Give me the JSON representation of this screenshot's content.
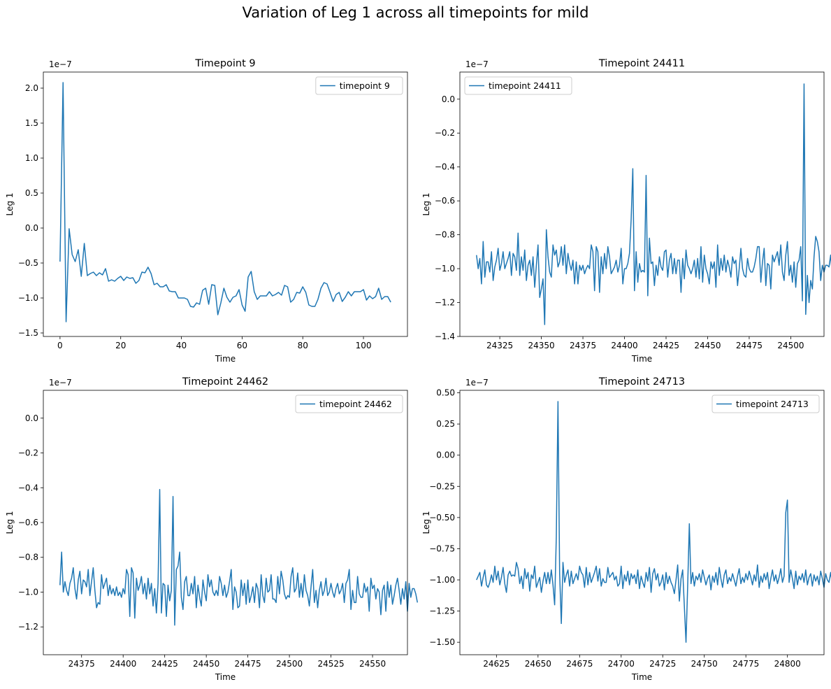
{
  "figure": {
    "title": "Variation of Leg 1 across all timepoints for mild"
  },
  "chart_data": [
    {
      "type": "line",
      "title": "Timepoint 9",
      "xlabel": "Time",
      "ylabel": "Leg 1",
      "offset_text": "1e−7",
      "legend": "upper right",
      "xlim": [
        -5.5,
        114.5
      ],
      "ylim": [
        -1.55,
        2.23
      ],
      "xticks": [
        0,
        20,
        40,
        60,
        80,
        100
      ],
      "xtick_labels": [
        "0",
        "20",
        "40",
        "60",
        "80",
        "100"
      ],
      "yticks": [
        -1.5,
        -1.0,
        -0.5,
        0.0,
        0.5,
        1.0,
        1.5,
        2.0
      ],
      "ytick_labels": [
        "−1.5",
        "−1.0",
        "−0.5",
        "0.0",
        "0.5",
        "1.0",
        "1.5",
        "2.0"
      ],
      "series": [
        {
          "name": "timepoint 9",
          "color": "#1f77b4",
          "x_start": 0,
          "y": [
            -0.48,
            2.08,
            -1.34,
            -0.01,
            -0.38,
            -0.48,
            -0.31,
            -0.69,
            -0.22,
            -0.68,
            -0.65,
            -0.63,
            -0.68,
            -0.64,
            -0.67,
            -0.58,
            -0.76,
            -0.74,
            -0.76,
            -0.72,
            -0.69,
            -0.75,
            -0.7,
            -0.72,
            -0.71,
            -0.79,
            -0.75,
            -0.63,
            -0.64,
            -0.56,
            -0.65,
            -0.81,
            -0.79,
            -0.84,
            -0.84,
            -0.81,
            -0.9,
            -0.91,
            -0.91,
            -1.0,
            -1.0,
            -1.0,
            -1.02,
            -1.12,
            -1.13,
            -1.07,
            -1.09,
            -0.89,
            -0.86,
            -1.09,
            -0.81,
            -0.82,
            -1.24,
            -1.07,
            -0.86,
            -0.99,
            -1.06,
            -0.99,
            -0.97,
            -0.88,
            -1.1,
            -1.19,
            -0.7,
            -0.62,
            -0.91,
            -1.02,
            -0.97,
            -0.97,
            -0.97,
            -0.91,
            -0.97,
            -0.95,
            -0.92,
            -0.96,
            -0.82,
            -0.84,
            -1.06,
            -1.02,
            -0.92,
            -0.93,
            -0.84,
            -0.92,
            -1.1,
            -1.12,
            -1.12,
            -1.02,
            -0.86,
            -0.78,
            -0.8,
            -0.92,
            -1.05,
            -0.95,
            -0.92,
            -1.05,
            -0.99,
            -0.91,
            -0.97,
            -0.91,
            -0.91,
            -0.91,
            -0.88,
            -1.03,
            -0.97,
            -1.01,
            -0.98,
            -0.86,
            -1.02,
            -0.98,
            -0.98,
            -1.06
          ]
        }
      ]
    },
    {
      "type": "line",
      "title": "Timepoint 24411",
      "xlabel": "Time",
      "ylabel": "Leg 1",
      "offset_text": "1e−7",
      "legend": "upper left",
      "xlim": [
        24301.0,
        24520.0
      ],
      "ylim": [
        -1.4,
        0.16
      ],
      "xticks": [
        24325,
        24350,
        24375,
        24400,
        24425,
        24450,
        24475,
        24500
      ],
      "xtick_labels": [
        "24325",
        "24350",
        "24375",
        "24400",
        "24425",
        "24450",
        "24475",
        "24500"
      ],
      "yticks": [
        -1.4,
        -1.2,
        -1.0,
        -0.8,
        -0.6,
        -0.4,
        -0.2,
        0.0
      ],
      "ytick_labels": [
        "−1.4",
        "−1.2",
        "−1.0",
        "−0.8",
        "−0.6",
        "−0.4",
        "−0.2",
        "0.0"
      ],
      "series": [
        {
          "name": "timepoint 24411",
          "color": "#1f77b4",
          "x_start": 24311,
          "y": [
            -0.92,
            -1.0,
            -0.94,
            -1.09,
            -0.84,
            -1.05,
            -0.96,
            -0.96,
            -1.02,
            -0.9,
            -1.07,
            -0.99,
            -0.95,
            -0.88,
            -1.01,
            -0.97,
            -0.9,
            -1.0,
            -0.97,
            -0.94,
            -0.9,
            -1.04,
            -0.91,
            -0.93,
            -1.01,
            -0.79,
            -1.04,
            -0.93,
            -1.01,
            -0.89,
            -1.07,
            -0.98,
            -0.95,
            -1.04,
            -0.93,
            -1.11,
            -0.98,
            -0.86,
            -1.17,
            -1.12,
            -1.06,
            -1.33,
            -0.77,
            -0.93,
            -1.02,
            -1.05,
            -0.86,
            -0.92,
            -0.89,
            -0.99,
            -0.96,
            -0.87,
            -0.98,
            -0.86,
            -1.03,
            -0.91,
            -0.97,
            -1.01,
            -0.95,
            -1.09,
            -0.96,
            -1.09,
            -0.98,
            -1.01,
            -0.98,
            -1.03,
            -1.0,
            -0.98,
            -1.0,
            -0.86,
            -0.9,
            -1.13,
            -0.87,
            -0.9,
            -1.14,
            -0.93,
            -1.03,
            -0.91,
            -1.0,
            -0.87,
            -0.93,
            -1.03,
            -1.01,
            -0.99,
            -0.95,
            -1.02,
            -0.98,
            -0.88,
            -1.09,
            -1.0,
            -1.0,
            -0.97,
            -0.91,
            -0.71,
            -0.41,
            -1.13,
            -0.9,
            -1.08,
            -0.97,
            -1.02,
            -1.01,
            -1.02,
            -0.45,
            -1.16,
            -0.82,
            -0.97,
            -0.96,
            -1.1,
            -0.98,
            -1.04,
            -0.93,
            -0.99,
            -1.01,
            -0.9,
            -0.89,
            -1.05,
            -0.95,
            -0.91,
            -1.03,
            -0.94,
            -1.03,
            -0.95,
            -0.95,
            -1.14,
            -0.94,
            -1.06,
            -0.89,
            -0.98,
            -1.0,
            -1.03,
            -1.0,
            -0.95,
            -1.05,
            -0.94,
            -1.06,
            -0.87,
            -1.08,
            -0.92,
            -1.0,
            -1.03,
            -1.09,
            -0.96,
            -1.0,
            -0.96,
            -1.11,
            -0.86,
            -1.04,
            -0.94,
            -1.01,
            -0.92,
            -1.02,
            -0.95,
            -0.99,
            -1.05,
            -0.93,
            -0.97,
            -0.95,
            -1.1,
            -1.0,
            -0.88,
            -1.0,
            -1.04,
            -1.05,
            -0.94,
            -1.0,
            -1.02,
            -1.02,
            -0.99,
            -0.94,
            -0.87,
            -0.87,
            -1.08,
            -0.96,
            -0.88,
            -1.1,
            -0.97,
            -0.98,
            -1.12,
            -0.92,
            -0.96,
            -0.93,
            -0.9,
            -0.98,
            -0.86,
            -1.02,
            -1.07,
            -0.92,
            -0.84,
            -1.04,
            -0.98,
            -1.08,
            -0.96,
            -1.11,
            -0.97,
            -0.95,
            -0.87,
            -1.19,
            0.09,
            -1.27,
            -1.04,
            -1.2,
            -1.07,
            -1.12,
            -0.93,
            -0.81,
            -0.84,
            -0.9,
            -1.07,
            -0.98,
            -1.02,
            -0.98,
            -0.98,
            -0.99,
            -0.92,
            -1.05
          ]
        }
      ]
    },
    {
      "type": "line",
      "title": "Timepoint 24462",
      "xlabel": "Time",
      "ylabel": "Leg 1",
      "offset_text": "1e−7",
      "legend": "upper right",
      "xlim": [
        24352.0,
        24571.0
      ],
      "ylim": [
        -1.36,
        0.16
      ],
      "xticks": [
        24375,
        24400,
        24425,
        24450,
        24475,
        24500,
        24525,
        24550
      ],
      "xtick_labels": [
        "24375",
        "24400",
        "24425",
        "24450",
        "24475",
        "24500",
        "24525",
        "24550"
      ],
      "yticks": [
        -1.2,
        -1.0,
        -0.8,
        -0.6,
        -0.4,
        -0.2,
        0.0
      ],
      "ytick_labels": [
        "−1.2",
        "−1.0",
        "−0.8",
        "−0.6",
        "−0.4",
        "−0.2",
        "0.0"
      ],
      "series": [
        {
          "name": "timepoint 24462",
          "color": "#1f77b4",
          "x_start": 24362,
          "y": [
            -0.96,
            -0.77,
            -1.0,
            -0.94,
            -0.99,
            -1.02,
            -0.95,
            -0.92,
            -0.86,
            -0.98,
            -1.04,
            -0.93,
            -0.88,
            -1.01,
            -0.93,
            -0.94,
            -0.97,
            -0.87,
            -1.02,
            -0.94,
            -0.86,
            -0.99,
            -1.09,
            -1.06,
            -1.07,
            -0.9,
            -0.98,
            -0.95,
            -0.92,
            -1.02,
            -0.96,
            -1.01,
            -0.98,
            -1.02,
            -0.97,
            -1.02,
            -1.0,
            -1.03,
            -0.98,
            -1.01,
            -0.87,
            -0.9,
            -1.14,
            -0.86,
            -0.89,
            -1.15,
            -0.92,
            -0.99,
            -0.96,
            -0.91,
            -1.01,
            -0.95,
            -1.04,
            -0.92,
            -1.01,
            -0.95,
            -1.08,
            -0.98,
            -1.12,
            -0.95,
            -0.41,
            -1.12,
            -0.95,
            -0.96,
            -1.14,
            -0.96,
            -1.05,
            -0.99,
            -0.45,
            -1.19,
            -0.87,
            -0.85,
            -0.77,
            -1.03,
            -1.1,
            -0.94,
            -0.91,
            -1.02,
            -1.02,
            -0.95,
            -1.01,
            -0.91,
            -1.09,
            -0.96,
            -1.03,
            -1.08,
            -0.93,
            -1.0,
            -1.05,
            -0.9,
            -0.97,
            -0.93,
            -1.0,
            -1.02,
            -0.99,
            -1.02,
            -0.91,
            -0.95,
            -1.02,
            -0.96,
            -1.03,
            -1.0,
            -0.94,
            -0.87,
            -1.1,
            -0.97,
            -1.0,
            -1.09,
            -1.08,
            -0.93,
            -1.02,
            -0.95,
            -1.07,
            -0.93,
            -1.06,
            -1.02,
            -0.97,
            -1.06,
            -0.95,
            -0.98,
            -1.09,
            -0.9,
            -1.02,
            -1.06,
            -0.92,
            -1.0,
            -0.99,
            -0.9,
            -1.04,
            -1.04,
            -1.06,
            -0.91,
            -1.01,
            -0.88,
            -0.93,
            -1.01,
            -1.04,
            -1.02,
            -1.03,
            -0.91,
            -0.86,
            -1.0,
            -0.98,
            -0.89,
            -1.03,
            -0.95,
            -1.03,
            -0.9,
            -0.99,
            -1.02,
            -1.08,
            -0.97,
            -0.87,
            -1.06,
            -0.99,
            -1.09,
            -0.99,
            -0.94,
            -1.02,
            -0.99,
            -0.92,
            -1.02,
            -1.0,
            -0.95,
            -1.0,
            -1.03,
            -0.98,
            -0.95,
            -1.01,
            -0.99,
            -0.95,
            -1.06,
            -0.95,
            -0.93,
            -0.87,
            -1.1,
            -0.99,
            -1.06,
            -1.06,
            -0.91,
            -1.01,
            -1.03,
            -1.03,
            -0.95,
            -1.0,
            -0.97,
            -1.11,
            -0.92,
            -0.98,
            -0.96,
            -1.04,
            -0.98,
            -1.0,
            -1.13,
            -0.99,
            -0.96,
            -1.11,
            -0.94,
            -1.03,
            -0.96,
            -1.07,
            -1.02,
            -0.96,
            -0.92,
            -0.99,
            -1.07,
            -0.98,
            -1.04,
            -0.94,
            -1.11,
            -0.95,
            -1.03,
            -0.98,
            -0.98,
            -1.01,
            -1.06
          ]
        }
      ]
    },
    {
      "type": "line",
      "title": "Timepoint 24713",
      "xlabel": "Time",
      "ylabel": "Leg 1",
      "offset_text": "1e−7",
      "legend": "upper right",
      "xlim": [
        24603.0,
        24822.0
      ],
      "ylim": [
        -1.6,
        0.52
      ],
      "xticks": [
        24625,
        24650,
        24675,
        24700,
        24725,
        24750,
        24775,
        24800
      ],
      "xtick_labels": [
        "24625",
        "24650",
        "24675",
        "24700",
        "24725",
        "24750",
        "24775",
        "24800"
      ],
      "yticks": [
        -1.5,
        -1.25,
        -1.0,
        -0.75,
        -0.5,
        -0.25,
        0.0,
        0.25,
        0.5
      ],
      "ytick_labels": [
        "−1.50",
        "−1.25",
        "−1.00",
        "−0.75",
        "−0.50",
        "−0.25",
        "0.00",
        "0.25",
        "0.50"
      ],
      "series": [
        {
          "name": "timepoint 24713",
          "color": "#1f77b4",
          "x_start": 24613,
          "y": [
            -1.0,
            -0.97,
            -0.94,
            -1.05,
            -0.98,
            -0.92,
            -1.04,
            -1.06,
            -1.02,
            -0.96,
            -1.02,
            -0.89,
            -1.0,
            -0.93,
            -1.04,
            -0.98,
            -0.9,
            -1.03,
            -1.1,
            -0.96,
            -0.93,
            -0.97,
            -0.96,
            -0.97,
            -0.86,
            -0.91,
            -1.03,
            -0.97,
            -1.07,
            -0.91,
            -0.99,
            -0.94,
            -1.09,
            -0.96,
            -0.99,
            -0.89,
            -1.06,
            -1.02,
            -0.98,
            -1.1,
            -1.01,
            -0.94,
            -1.03,
            -0.94,
            -1.03,
            -0.92,
            -1.04,
            -1.2,
            -0.65,
            0.43,
            -0.95,
            -1.35,
            -0.86,
            -1.02,
            -0.96,
            -0.92,
            -1.05,
            -0.93,
            -1.03,
            -0.99,
            -0.95,
            -1.0,
            -0.89,
            -0.94,
            -0.96,
            -1.06,
            -0.9,
            -1.04,
            -0.94,
            -1.02,
            -0.98,
            -0.94,
            -0.89,
            -1.01,
            -0.91,
            -1.05,
            -0.99,
            -1.02,
            -1.02,
            -0.9,
            -0.98,
            -0.96,
            -0.94,
            -1.0,
            -0.97,
            -1.05,
            -1.03,
            -0.89,
            -1.07,
            -0.96,
            -1.01,
            -0.93,
            -1.04,
            -0.95,
            -0.99,
            -0.96,
            -1.03,
            -0.92,
            -1.07,
            -0.97,
            -1.02,
            -1.06,
            -0.94,
            -1.01,
            -0.9,
            -1.1,
            -0.95,
            -0.91,
            -1.0,
            -0.95,
            -1.05,
            -1.02,
            -0.96,
            -1.08,
            -0.94,
            -1.03,
            -0.97,
            -1.02,
            -1.05,
            -1.11,
            -1.0,
            -0.88,
            -1.17,
            -0.99,
            -0.92,
            -1.21,
            -1.5,
            -1.05,
            -0.55,
            -1.03,
            -0.94,
            -1.05,
            -0.97,
            -1.0,
            -0.95,
            -1.02,
            -0.92,
            -0.98,
            -1.04,
            -0.99,
            -0.96,
            -1.08,
            -0.97,
            -1.02,
            -0.94,
            -1.04,
            -0.9,
            -0.99,
            -1.06,
            -0.96,
            -0.92,
            -1.03,
            -0.98,
            -1.01,
            -0.95,
            -1.0,
            -1.05,
            -0.97,
            -0.91,
            -1.03,
            -0.98,
            -1.02,
            -0.95,
            -1.0,
            -0.93,
            -0.98,
            -1.04,
            -0.96,
            -1.01,
            -0.88,
            -1.06,
            -0.97,
            -1.02,
            -0.95,
            -1.0,
            -0.94,
            -1.07,
            -0.99,
            -0.92,
            -1.01,
            -0.96,
            -1.03,
            -0.98,
            -0.91,
            -1.02,
            -0.97,
            -0.46,
            -0.36,
            -1.02,
            -0.92,
            -0.99,
            -1.07,
            -0.93,
            -1.04,
            -0.97,
            -1.0,
            -0.95,
            -1.02,
            -0.92,
            -1.04,
            -0.98,
            -0.95,
            -1.05,
            -0.96,
            -1.01,
            -0.97,
            -1.04,
            -0.93,
            -0.99,
            -1.06,
            -0.95,
            -1.0,
            -1.02,
            -0.94,
            -1.04,
            -0.98,
            -0.97
          ]
        }
      ]
    }
  ]
}
